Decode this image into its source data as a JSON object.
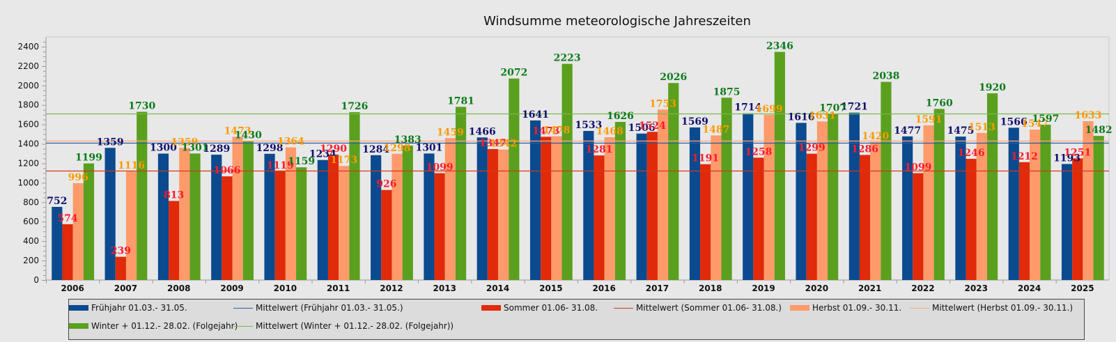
{
  "chart_data": {
    "type": "bar",
    "title": "Windsumme meteorologische Jahreszeiten",
    "xlabel": "",
    "ylabel": "",
    "ylim": [
      0,
      2500
    ],
    "yticks": [
      0,
      200,
      400,
      600,
      800,
      1000,
      1200,
      1400,
      1600,
      1800,
      2000,
      2200,
      2400
    ],
    "grid": false,
    "legend_position": "bottom",
    "categories": [
      "2006",
      "2007",
      "2008",
      "2009",
      "2010",
      "2011",
      "2012",
      "2013",
      "2014",
      "2015",
      "2016",
      "2017",
      "2018",
      "2019",
      "2020",
      "2021",
      "2022",
      "2023",
      "2024",
      "2025"
    ],
    "series": [
      {
        "name": "Frühjahr 01.03.- 31.05.",
        "color": "#0b4a8f",
        "label_color": "#10106e",
        "values": [
          752,
          1359,
          1300,
          1289,
          1298,
          1234,
          1284,
          1301,
          1466,
          1641,
          1533,
          1506,
          1569,
          1714,
          1616,
          1721,
          1477,
          1475,
          1566,
          1193
        ]
      },
      {
        "name": "Sommer 01.06- 31.08.",
        "color": "#e02a0a",
        "label_color": "#ff1a2a",
        "values": [
          574,
          239,
          813,
          1066,
          1119,
          1290,
          926,
          1099,
          1347,
          1473,
          1281,
          1524,
          1191,
          1258,
          1299,
          1286,
          1099,
          1246,
          1212,
          1251
        ]
      },
      {
        "name": "Herbst 01.09.- 30.11.",
        "color": "#ff9a6a",
        "label_color": "#ff9900",
        "values": [
          996,
          1116,
          1359,
          1473,
          1364,
          1173,
          1298,
          1459,
          1342,
          1478,
          1468,
          1753,
          1487,
          1699,
          1631,
          1420,
          1591,
          1513,
          1547,
          1633
        ]
      },
      {
        "name": "Winter + 01.12.- 28.02. (Folgejahr)",
        "color": "#5aa01e",
        "label_color": "#0b7a1a",
        "values": [
          1199,
          1730,
          1301,
          1430,
          1159,
          1726,
          1383,
          1781,
          2072,
          2223,
          1626,
          2026,
          1875,
          2346,
          1707,
          2038,
          1760,
          1920,
          1597,
          1482
        ]
      }
    ],
    "mean_lines": [
      {
        "name": "Mittelwert (Frühjahr 01.03.- 31.05.)",
        "color": "#2a5ea0",
        "value": 1410
      },
      {
        "name": "Mittelwert (Sommer 01.06- 31.08.)",
        "color": "#d03a1a",
        "value": 1122
      },
      {
        "name": "Mittelwert (Herbst 01.09.- 30.11.)",
        "color": "#ffa57a",
        "value": 1434
      },
      {
        "name": "Mittelwert (Winter + 01.12.- 28.02. (Folgejahr))",
        "color": "#7ab84a",
        "value": 1711
      }
    ]
  },
  "legend": {
    "items": [
      {
        "label": "Frühjahr 01.03.- 31.05.",
        "kind": "bar",
        "color": "#0b4a8f"
      },
      {
        "label": "Mittelwert (Frühjahr 01.03.- 31.05.)",
        "kind": "line",
        "color": "#2a5ea0"
      },
      {
        "label": "Sommer 01.06- 31.08.",
        "kind": "bar",
        "color": "#e02a0a"
      },
      {
        "label": "Mittelwert (Sommer 01.06- 31.08.)",
        "kind": "line",
        "color": "#d03a1a"
      },
      {
        "label": "Herbst 01.09.- 30.11.",
        "kind": "bar",
        "color": "#ff9a6a"
      },
      {
        "label": "Mittelwert (Herbst 01.09.- 30.11.)",
        "kind": "line",
        "color": "#ffa57a"
      },
      {
        "label": "Winter + 01.12.- 28.02. (Folgejahr)",
        "kind": "bar",
        "color": "#5aa01e"
      },
      {
        "label": "Mittelwert (Winter + 01.12.- 28.02. (Folgejahr))",
        "kind": "line",
        "color": "#7ab84a"
      }
    ]
  }
}
